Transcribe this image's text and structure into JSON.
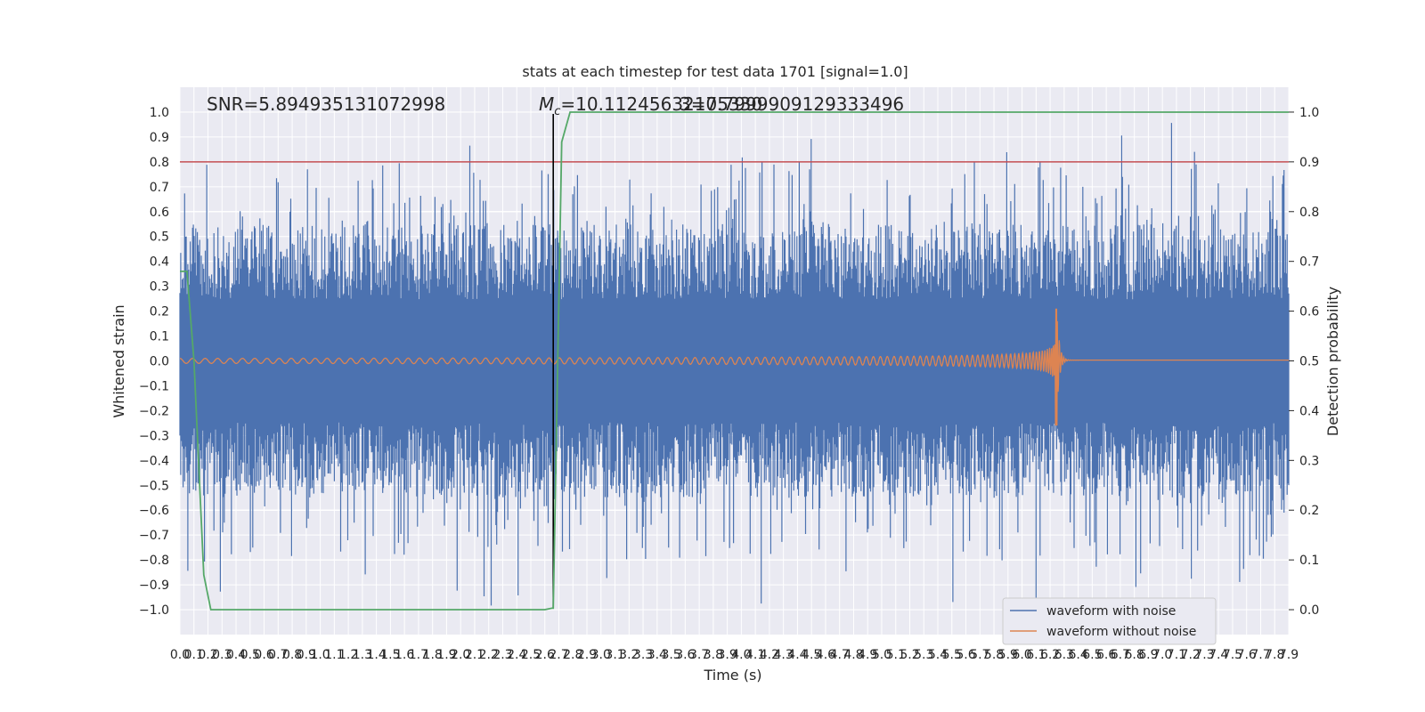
{
  "chart_data": {
    "type": "line",
    "title": "stats at each timestep for test data 1701 [signal=1.0]",
    "xlabel": "Time (s)",
    "ylabel": "Whitened strain",
    "ylabel_right": "Detection probability",
    "xlim": [
      0.0,
      7.9
    ],
    "ylim": [
      -1.1,
      1.1
    ],
    "ylim_right": [
      -0.05,
      1.05
    ],
    "x_ticks": [
      "0.0",
      "0.1",
      "0.2",
      "0.3",
      "0.4",
      "0.5",
      "0.6",
      "0.7",
      "0.8",
      "0.9",
      "1.0",
      "1.1",
      "1.2",
      "1.3",
      "1.4",
      "1.5",
      "1.6",
      "1.7",
      "1.8",
      "1.9",
      "2.0",
      "2.1",
      "2.2",
      "2.3",
      "2.4",
      "2.5",
      "2.6",
      "2.7",
      "2.8",
      "2.9",
      "3.0",
      "3.1",
      "3.2",
      "3.3",
      "3.4",
      "3.5",
      "3.6",
      "3.7",
      "3.8",
      "3.9",
      "4.0",
      "4.1",
      "4.2",
      "4.3",
      "4.4",
      "4.5",
      "4.6",
      "4.7",
      "4.8",
      "4.9",
      "5.0",
      "5.1",
      "5.2",
      "5.3",
      "5.4",
      "5.5",
      "5.6",
      "5.7",
      "5.8",
      "5.9",
      "6.0",
      "6.1",
      "6.2",
      "6.3",
      "6.4",
      "6.5",
      "6.6",
      "6.7",
      "6.8",
      "6.9",
      "7.0",
      "7.1",
      "7.2",
      "7.3",
      "7.4",
      "7.5",
      "7.6",
      "7.7",
      "7.8",
      "7.9"
    ],
    "y_ticks_left": [
      "1.0",
      "0.9",
      "0.8",
      "0.7",
      "0.6",
      "0.5",
      "0.4",
      "0.3",
      "0.2",
      "0.1",
      "0.0",
      "−0.1",
      "−0.2",
      "−0.3",
      "−0.4",
      "−0.5",
      "−0.6",
      "−0.7",
      "−0.8",
      "−0.9",
      "−1.0"
    ],
    "y_ticks_right": [
      "1.0",
      "0.9",
      "0.8",
      "0.7",
      "0.6",
      "0.5",
      "0.4",
      "0.3",
      "0.2",
      "0.1",
      "0.0"
    ],
    "grid": true,
    "legend": {
      "placement": "lower-right",
      "entries": [
        {
          "label": "waveform with noise",
          "color": "#4c72b0"
        },
        {
          "label": "waveform without noise",
          "color": "#dd8452"
        }
      ]
    },
    "annotations": {
      "snr": "SNR=5.894935131072998",
      "mc_symbol": "M",
      "mc_sub": "c",
      "mc_value": "=10.11245632175330",
      "mc_overlap": "3=0.7999909129333496"
    },
    "threshold_line": {
      "axis": "right",
      "y": 0.9,
      "color": "#c44e52"
    },
    "merger_marker": {
      "x": 2.66,
      "color": "#000000"
    },
    "series": [
      {
        "name": "waveform with noise",
        "color": "#4c72b0",
        "noise_band_envelope": {
          "x": [
            0.0,
            7.9
          ],
          "typical_range": [
            -0.55,
            0.55
          ],
          "extremes": [
            -1.0,
            0.97
          ]
        }
      },
      {
        "name": "waveform without noise",
        "color": "#dd8452",
        "chirp": {
          "start_x": 0.0,
          "peak_x": 6.25,
          "end_x": 7.9,
          "start_amplitude": 0.01,
          "peak_amplitude": 0.21,
          "peak_min": -0.26
        }
      },
      {
        "name": "Detection probability",
        "axis": "right",
        "color": "#55a868",
        "x": [
          0.0,
          0.05,
          0.1,
          0.17,
          0.22,
          2.6,
          2.65,
          2.66,
          2.72,
          2.78,
          7.9
        ],
        "y": [
          0.68,
          0.68,
          0.5,
          0.07,
          0.0,
          0.0,
          0.003,
          0.003,
          0.94,
          1.0,
          1.0
        ]
      }
    ]
  }
}
